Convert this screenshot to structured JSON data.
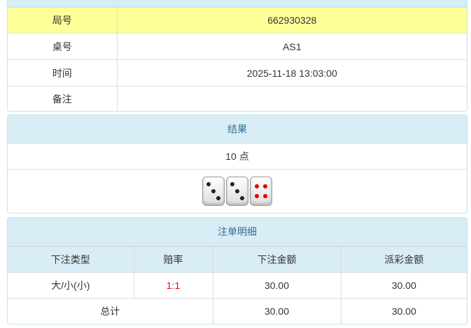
{
  "info": {
    "rows": [
      {
        "label": "局号",
        "value": "662930328"
      },
      {
        "label": "桌号",
        "value": "AS1"
      },
      {
        "label": "时间",
        "value": "2025-11-18 13:03:00"
      },
      {
        "label": "备注",
        "value": ""
      }
    ]
  },
  "result": {
    "title": "结果",
    "points": "10 点",
    "dice": [
      3,
      3,
      4
    ]
  },
  "bets": {
    "title": "注单明细",
    "headers": [
      "下注类型",
      "赔率",
      "下注金额",
      "派彩金额"
    ],
    "rows": [
      {
        "type": "大/小(小)",
        "odds": "1:1",
        "amount": "30.00",
        "payout": "30.00"
      }
    ],
    "total": {
      "label": "总计",
      "amount": "30.00",
      "payout": "30.00"
    }
  },
  "colors": {
    "header": "#d9edf7",
    "highlight": "#ffff99",
    "odds": "#e00000"
  }
}
